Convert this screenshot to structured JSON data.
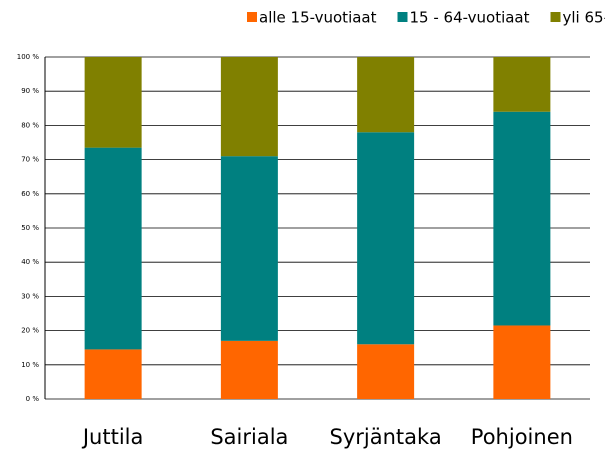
{
  "chart_data": {
    "type": "stacked_bar",
    "categories": [
      "Juttila",
      "Sairiala",
      "Syrjäntaka",
      "Pohjoinen"
    ],
    "series": [
      {
        "name": "alle 15-vuotiaat",
        "color": "#ff6600",
        "values": [
          14.5,
          17,
          16,
          21.5
        ]
      },
      {
        "name": "15 - 64-vuotiaat",
        "color": "#008080",
        "values": [
          59,
          54,
          62,
          62.5
        ]
      },
      {
        "name": "yli 65-vuotiaat",
        "color": "#808000",
        "values": [
          26.5,
          29,
          22,
          16
        ]
      }
    ],
    "ylim": [
      0,
      100
    ],
    "yticks": [
      {
        "value": 0,
        "label": "0 %"
      },
      {
        "value": 10,
        "label": "10 %"
      },
      {
        "value": 20,
        "label": "20 %"
      },
      {
        "value": 30,
        "label": "30 %"
      },
      {
        "value": 40,
        "label": "40 %"
      },
      {
        "value": 50,
        "label": "50 %"
      },
      {
        "value": 60,
        "label": "60 %"
      },
      {
        "value": 70,
        "label": "70 %"
      },
      {
        "value": 80,
        "label": "80 %"
      },
      {
        "value": 90,
        "label": "90 %"
      },
      {
        "value": 100,
        "label": "100 %"
      }
    ],
    "grid": true,
    "legend": "top"
  }
}
